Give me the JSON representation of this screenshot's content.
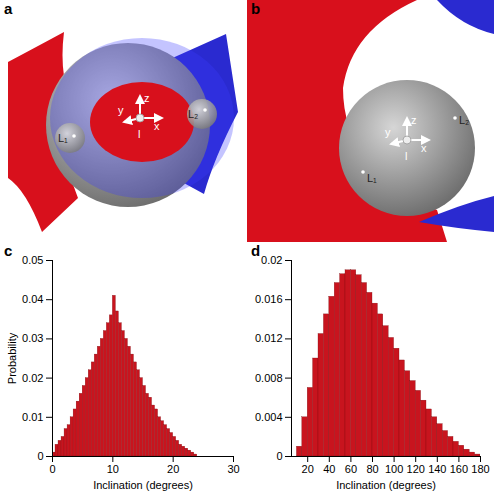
{
  "chart_data": [
    {
      "type": "histogram",
      "title": "c",
      "xlabel": "Inclination (degrees)",
      "ylabel": "Probability",
      "bins": [
        0,
        0.5,
        1,
        1.5,
        2,
        2.5,
        3,
        3.5,
        4,
        4.5,
        5,
        5.5,
        6,
        6.5,
        7,
        7.5,
        8,
        8.5,
        9,
        9.5,
        10,
        10.5,
        11,
        11.5,
        12,
        12.5,
        13,
        13.5,
        14,
        14.5,
        15,
        15.5,
        16,
        16.5,
        17,
        17.5,
        18,
        18.5,
        19,
        19.5,
        20,
        20.5,
        21,
        21.5,
        22,
        22.5,
        23,
        23.5,
        24
      ],
      "values": [
        0.001,
        0.003,
        0.004,
        0.005,
        0.007,
        0.008,
        0.01,
        0.012,
        0.014,
        0.016,
        0.018,
        0.02,
        0.022,
        0.024,
        0.026,
        0.028,
        0.03,
        0.032,
        0.034,
        0.036,
        0.041,
        0.037,
        0.034,
        0.032,
        0.03,
        0.028,
        0.026,
        0.024,
        0.022,
        0.02,
        0.018,
        0.016,
        0.015,
        0.013,
        0.012,
        0.01,
        0.009,
        0.008,
        0.007,
        0.006,
        0.005,
        0.004,
        0.003,
        0.0025,
        0.002,
        0.0015,
        0.001,
        0.0005
      ],
      "color": "#c8141e",
      "xlim": [
        0,
        30
      ],
      "xticks": [
        0,
        10,
        20,
        30
      ],
      "ylim": [
        0,
        0.05
      ],
      "yticks": [
        0,
        0.01,
        0.02,
        0.03,
        0.04,
        0.05
      ]
    },
    {
      "type": "histogram",
      "title": "d",
      "xlabel": "Inclination (degrees)",
      "bins": [
        10,
        15,
        20,
        25,
        30,
        35,
        40,
        45,
        50,
        55,
        60,
        65,
        70,
        75,
        80,
        85,
        90,
        95,
        100,
        105,
        110,
        115,
        120,
        125,
        130,
        135,
        140,
        145,
        150,
        155,
        160,
        165,
        170,
        175,
        180
      ],
      "values": [
        0.001,
        0.004,
        0.007,
        0.01,
        0.0125,
        0.0145,
        0.0163,
        0.0177,
        0.0186,
        0.019,
        0.019,
        0.0185,
        0.0177,
        0.0167,
        0.0156,
        0.0145,
        0.0133,
        0.0121,
        0.011,
        0.0098,
        0.0087,
        0.0077,
        0.0067,
        0.0057,
        0.0048,
        0.004,
        0.0033,
        0.0026,
        0.002,
        0.0015,
        0.0011,
        0.0007,
        0.0004,
        0.0002
      ],
      "color": "#c8141e",
      "xlim": [
        5,
        180
      ],
      "xticks": [
        20,
        40,
        60,
        80,
        100,
        120,
        140,
        160,
        180
      ],
      "ylim": [
        0,
        0.02
      ],
      "yticks": [
        0,
        0.004,
        0.008,
        0.012,
        0.016,
        0.02
      ]
    }
  ],
  "diagrams": [
    {
      "panel": "a",
      "axes": [
        "z",
        "y",
        "x"
      ],
      "origin": "l",
      "points": [
        "L₁",
        "L₂"
      ]
    },
    {
      "panel": "b",
      "axes": [
        "z",
        "y",
        "x"
      ],
      "origin": "l",
      "points": [
        "L₁",
        "L₂"
      ]
    }
  ]
}
